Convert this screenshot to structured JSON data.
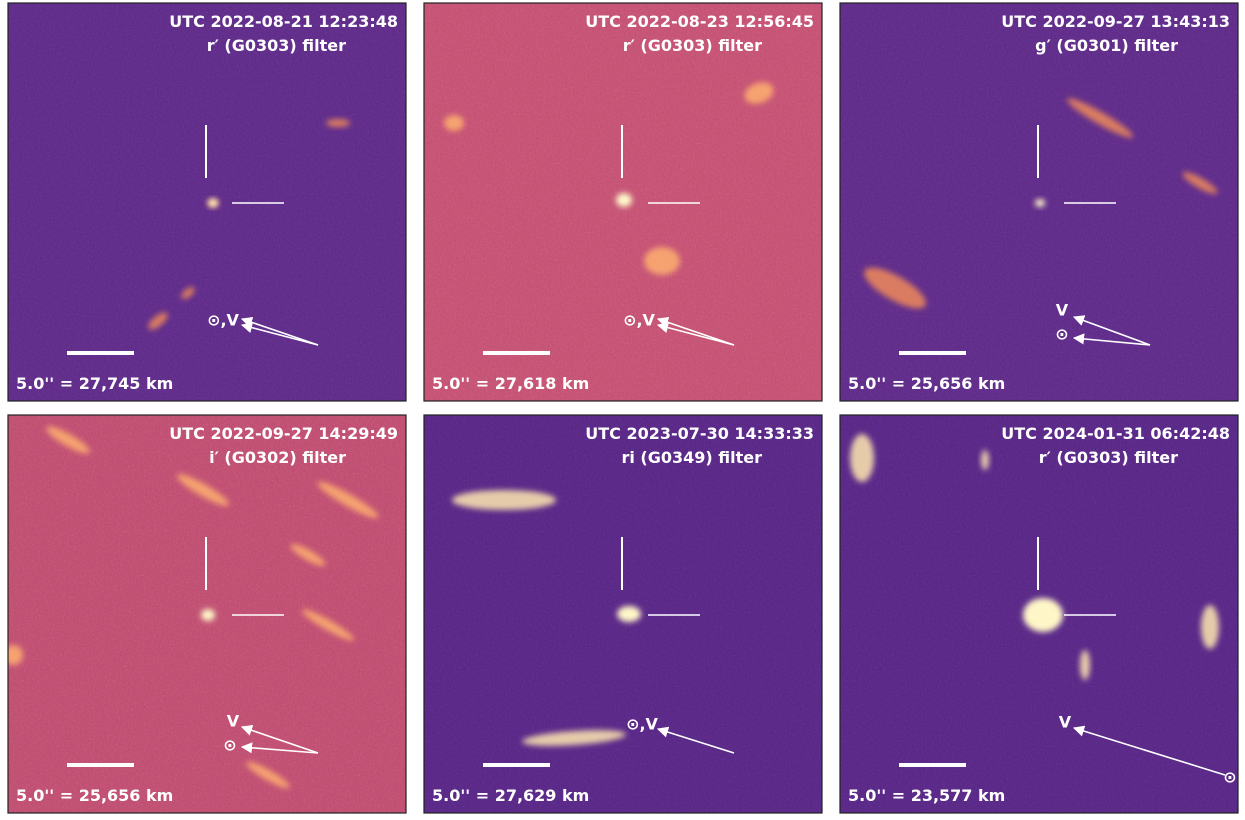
{
  "panels": [
    {
      "utc": "UTC 2022-08-21 12:23:48",
      "filter": "r′ (G0303) filter",
      "scale": "5.0'' = 27,745 km",
      "arrow_labels": [
        "⊙,V"
      ]
    },
    {
      "utc": "UTC 2022-08-23 12:56:45",
      "filter": "r′ (G0303) filter",
      "scale": "5.0'' = 27,618 km",
      "arrow_labels": [
        "⊙,V"
      ]
    },
    {
      "utc": "UTC 2022-09-27 13:43:13",
      "filter": "g′ (G0301) filter",
      "scale": "5.0'' = 25,656 km",
      "arrow_labels": [
        "V",
        "⊙"
      ]
    },
    {
      "utc": "UTC 2022-09-27 14:29:49",
      "filter": "i′ (G0302) filter",
      "scale": "5.0'' = 25,656 km",
      "arrow_labels": [
        "V",
        "⊙"
      ]
    },
    {
      "utc": "UTC 2023-07-30 14:33:33",
      "filter": "ri (G0349) filter",
      "scale": "5.0'' = 27,629 km",
      "arrow_labels": [
        "⊙,V"
      ]
    },
    {
      "utc": "UTC 2024-01-31 06:42:48",
      "filter": "r′ (G0303) filter",
      "scale": "5.0'' = 23,577 km",
      "arrow_labels": [
        "V",
        "⊙"
      ]
    }
  ]
}
